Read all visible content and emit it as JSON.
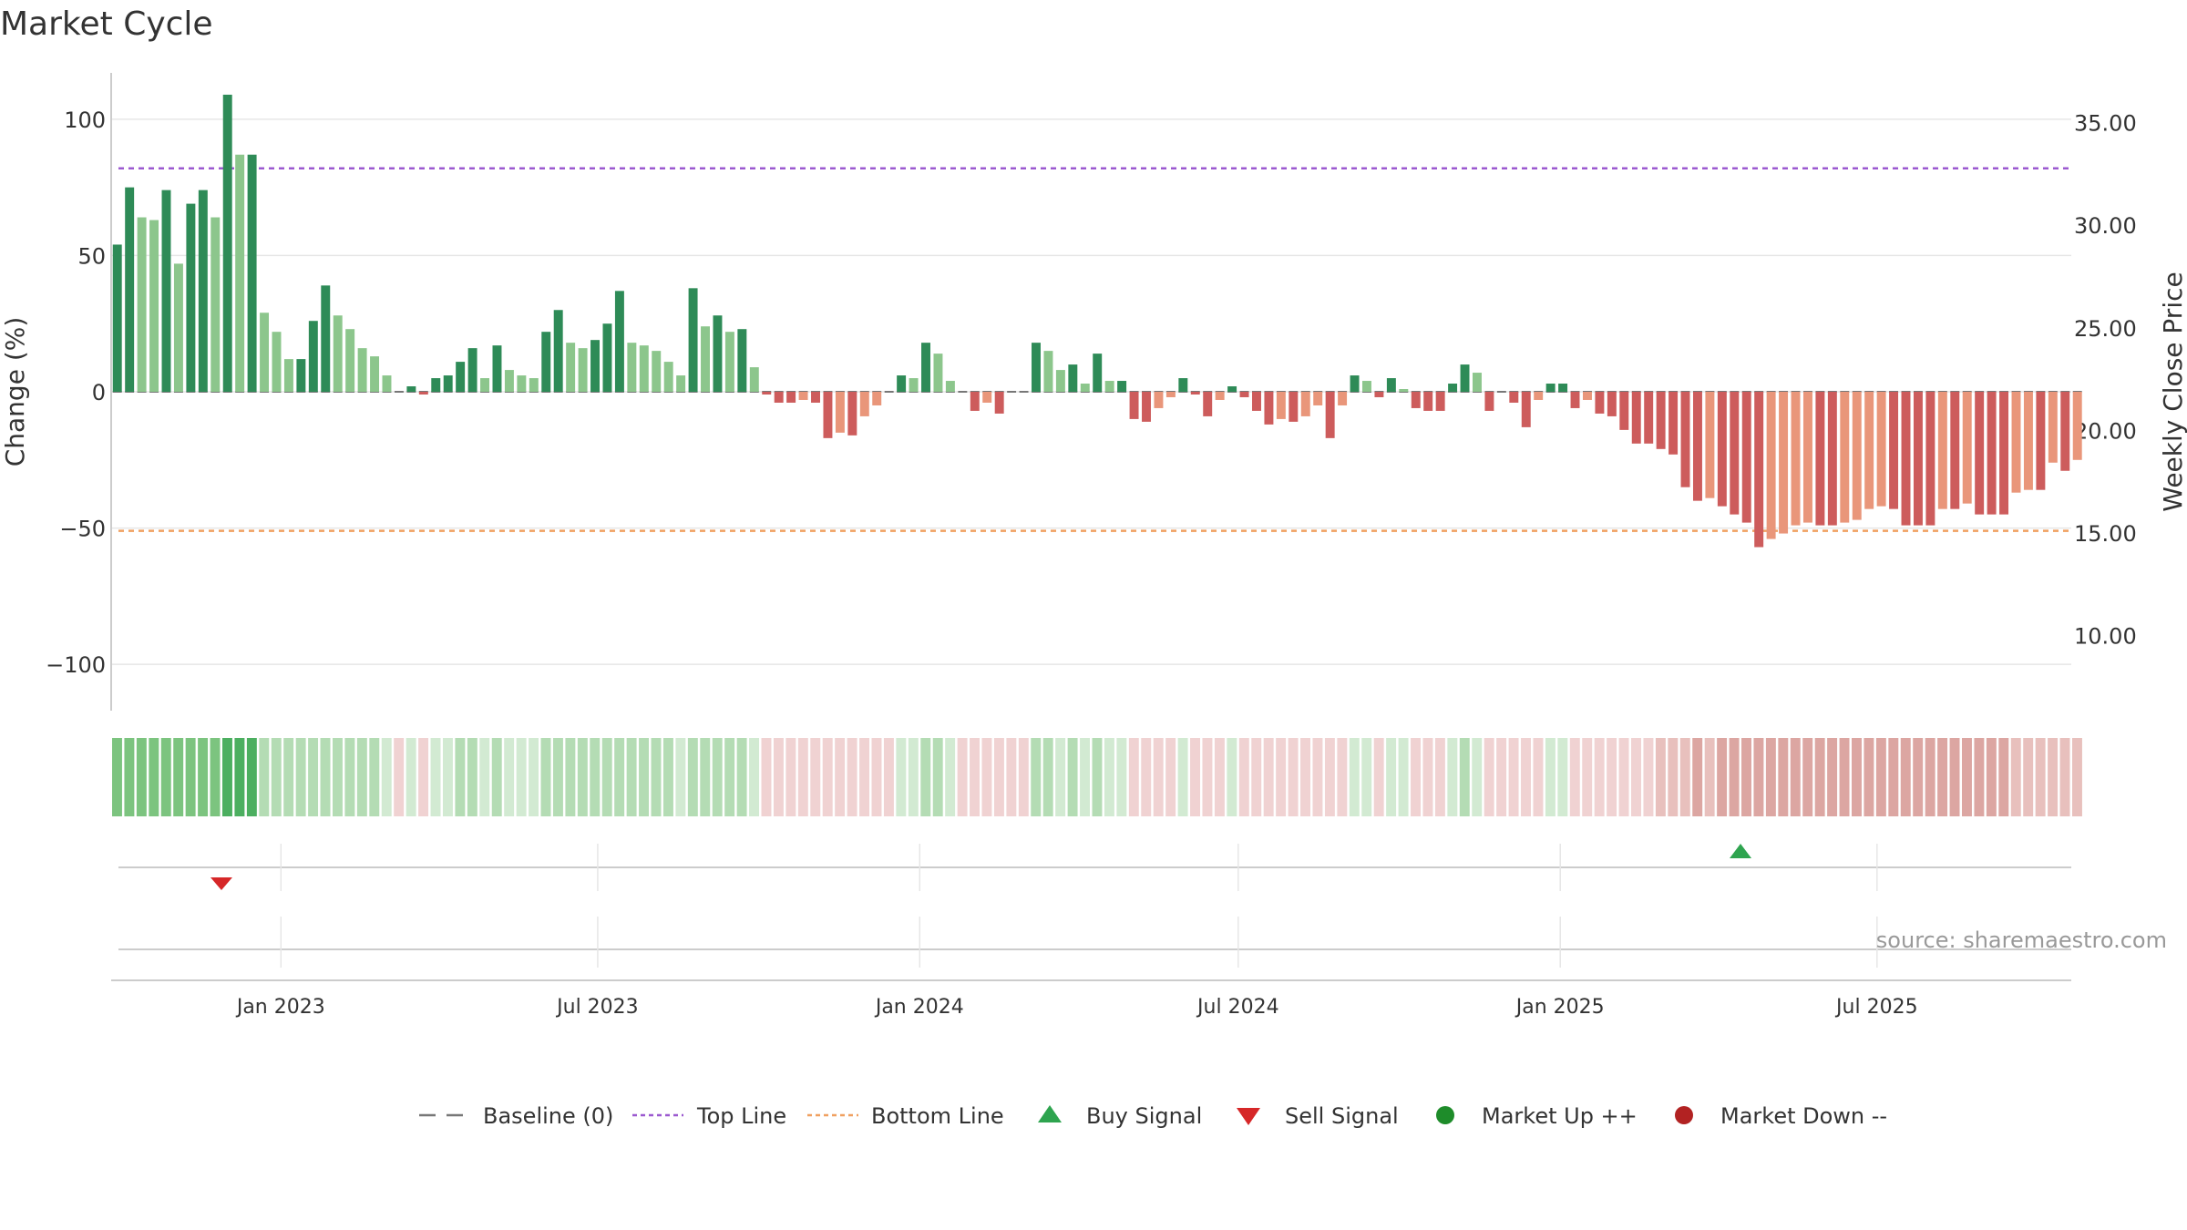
{
  "chart_data": {
    "type": "bar",
    "title": "Market Cycle",
    "ylabel": "Change (%)",
    "y2label": "Weekly Close Price",
    "source": "source: sharemaestro.com",
    "ylim": [
      -117,
      117
    ],
    "y_ticks": [
      100,
      50,
      0,
      -50,
      -100
    ],
    "y_tick_labels": [
      "100",
      "50",
      "0",
      "−50",
      "−100"
    ],
    "y2lim": [
      6.33,
      37.43
    ],
    "y2_ticks": [
      "35.00",
      "30.00",
      "25.00",
      "20.00",
      "15.00",
      "10.00"
    ],
    "x_start": "2022-09-26",
    "x_end": "2025-10-20",
    "x_ticks": [
      {
        "date": "2023-01-01",
        "label": "Jan 2023"
      },
      {
        "date": "2023-07-01",
        "label": "Jul 2023"
      },
      {
        "date": "2024-01-01",
        "label": "Jan 2024"
      },
      {
        "date": "2024-07-01",
        "label": "Jul 2024"
      },
      {
        "date": "2025-01-01",
        "label": "Jan 2025"
      },
      {
        "date": "2025-07-01",
        "label": "Jul 2025"
      }
    ],
    "first_week": "2022-09-26",
    "values": [
      54,
      75,
      64,
      63,
      74,
      47,
      69,
      74,
      64,
      109,
      87,
      87,
      29,
      22,
      12,
      12,
      26,
      39,
      28,
      23,
      16,
      13,
      6,
      0,
      2,
      -1,
      5,
      6,
      11,
      16,
      5,
      17,
      8,
      6,
      5,
      22,
      30,
      18,
      16,
      19,
      25,
      37,
      18,
      17,
      15,
      11,
      6,
      38,
      24,
      28,
      22,
      23,
      9,
      -1,
      -4,
      -4,
      -3,
      -4,
      -17,
      -15,
      -16,
      -9,
      -5,
      0,
      6,
      5,
      18,
      14,
      4,
      0,
      -7,
      -4,
      -8,
      0,
      0,
      18,
      15,
      8,
      10,
      3,
      14,
      4,
      4,
      -10,
      -11,
      -6,
      -2,
      5,
      -1,
      -9,
      -3,
      2,
      -2,
      -7,
      -12,
      -10,
      -11,
      -9,
      -5,
      -17,
      -5,
      6,
      4,
      -2,
      5,
      1,
      -6,
      -7,
      -7,
      3,
      10,
      7,
      -7,
      0,
      -4,
      -13,
      -3,
      3,
      3,
      -6,
      -3,
      -8,
      -9,
      -14,
      -19,
      -19,
      -21,
      -23,
      -35,
      -40,
      -39,
      -42,
      -45,
      -48,
      -57,
      -54,
      -52,
      -49,
      -48,
      -49,
      -49,
      -48,
      -47,
      -43,
      -42,
      -43,
      -49,
      -49,
      -49,
      -43,
      -43,
      -41,
      -45,
      -45,
      -45,
      -37,
      -36,
      -36,
      -26,
      -29,
      -25
    ],
    "series": [
      {
        "name": "Baseline (0)",
        "value": 0,
        "color": "#777777"
      },
      {
        "name": "Top Line",
        "value": 82,
        "color": "#9b59d0"
      },
      {
        "name": "Bottom Line",
        "value": -51,
        "color": "#f0a060"
      },
      {
        "name": "Buy Signal",
        "color": "#2ea44f",
        "dates": [
          "2025-04-14"
        ]
      },
      {
        "name": "Sell Signal",
        "color": "#d62728",
        "dates": [
          "2022-11-28"
        ]
      },
      {
        "name": "Market Up ++",
        "color": "#1e8c2a",
        "dates": []
      },
      {
        "name": "Market Down --",
        "color": "#b22222",
        "dates": []
      }
    ],
    "colors": {
      "bar_up_strong": "#2e8b57",
      "bar_up_weak": "#8cc68c",
      "bar_down_strong": "#cd5c5c",
      "bar_down_weak": "#e9967a",
      "grid": "#e6e6e6",
      "axis": "#cccccc",
      "strip_green_strong": "#4caf60",
      "strip_green_mid": "#7cc47f",
      "strip_green_light": "#b4dcb4",
      "strip_green_faint": "#d2ead2",
      "strip_red_faint": "#f0d2d2",
      "strip_red_light": "#e8c0bd",
      "strip_red_mid": "#dca6a2"
    },
    "grid": true,
    "legend_position": "bottom"
  }
}
